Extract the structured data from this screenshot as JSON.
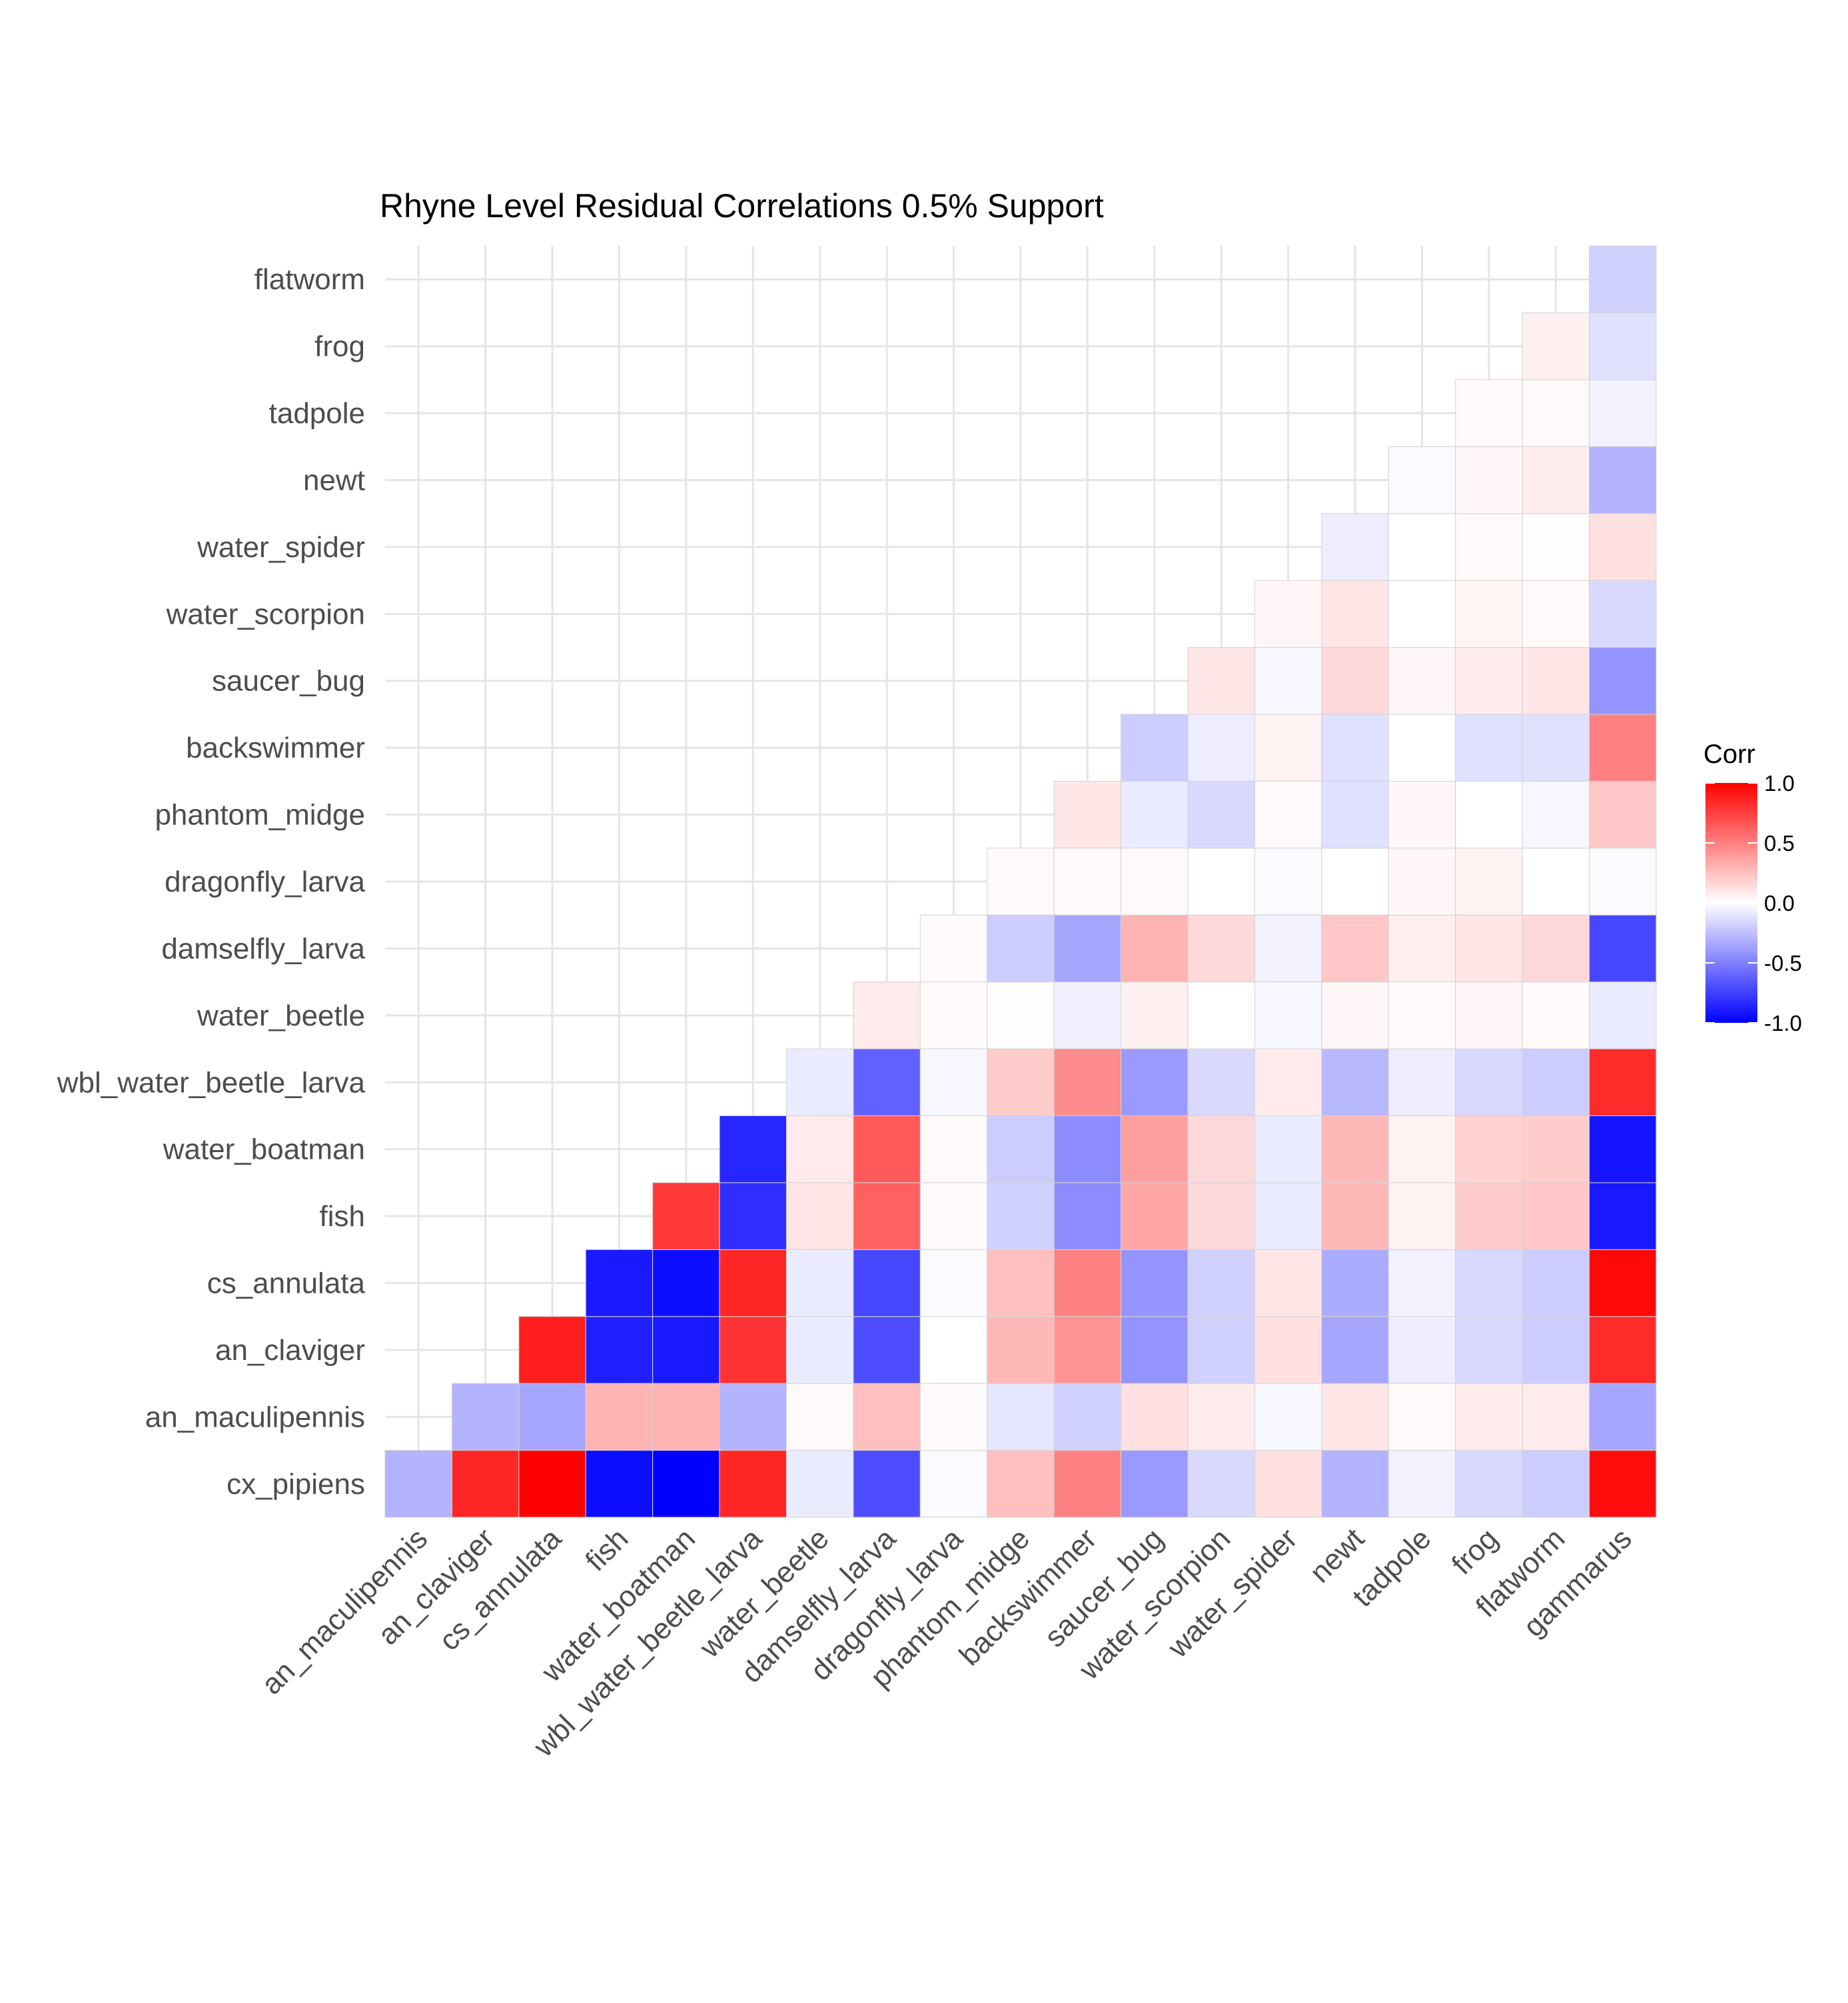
{
  "chart_data": {
    "type": "heatmap",
    "title": "Rhyne Level Residual Correlations 0.5% Support",
    "x_categories": [
      "an_maculipennis",
      "an_claviger",
      "cs_annulata",
      "fish",
      "water_boatman",
      "wbl_water_beetle_larva",
      "water_beetle",
      "damselfly_larva",
      "dragonfly_larva",
      "phantom_midge",
      "backswimmer",
      "saucer_bug",
      "water_scorpion",
      "water_spider",
      "newt",
      "tadpole",
      "frog",
      "flatworm",
      "gammarus"
    ],
    "y_categories": [
      "cx_pipiens",
      "an_maculipennis",
      "an_claviger",
      "cs_annulata",
      "fish",
      "water_boatman",
      "wbl_water_beetle_larva",
      "water_beetle",
      "damselfly_larva",
      "dragonfly_larva",
      "phantom_midge",
      "backswimmer",
      "saucer_bug",
      "water_scorpion",
      "water_spider",
      "newt",
      "tadpole",
      "frog",
      "flatworm"
    ],
    "values": [
      [
        -0.3,
        0.85,
        1.0,
        -0.95,
        -1.0,
        0.85,
        -0.08,
        -0.7,
        -0.02,
        0.25,
        0.5,
        -0.4,
        -0.15,
        0.12,
        -0.3,
        -0.05,
        -0.15,
        -0.2,
        0.95
      ],
      [
        null,
        -0.3,
        -0.35,
        0.3,
        0.3,
        -0.3,
        0.02,
        0.25,
        0.02,
        -0.1,
        -0.18,
        0.12,
        0.08,
        -0.03,
        0.1,
        0.02,
        0.08,
        0.08,
        -0.35
      ],
      [
        null,
        null,
        0.88,
        -0.88,
        -0.9,
        0.8,
        -0.08,
        -0.7,
        0.0,
        0.28,
        0.42,
        -0.42,
        -0.18,
        0.12,
        -0.35,
        -0.07,
        -0.15,
        -0.2,
        0.83
      ],
      [
        null,
        null,
        null,
        -0.9,
        -0.95,
        0.85,
        -0.08,
        -0.72,
        -0.02,
        0.25,
        0.5,
        -0.42,
        -0.18,
        0.1,
        -0.33,
        -0.05,
        -0.15,
        -0.2,
        0.97
      ],
      [
        null,
        null,
        null,
        null,
        0.78,
        -0.82,
        0.1,
        0.62,
        0.02,
        -0.18,
        -0.45,
        0.35,
        0.15,
        -0.08,
        0.28,
        0.05,
        0.2,
        0.22,
        -0.9
      ],
      [
        null,
        null,
        null,
        null,
        null,
        -0.85,
        0.08,
        0.65,
        0.02,
        -0.2,
        -0.45,
        0.38,
        0.15,
        -0.08,
        0.28,
        0.05,
        0.18,
        0.2,
        -0.92
      ],
      [
        null,
        null,
        null,
        null,
        null,
        null,
        -0.08,
        -0.62,
        -0.03,
        0.2,
        0.45,
        -0.4,
        -0.15,
        0.08,
        -0.28,
        -0.07,
        -0.15,
        -0.2,
        0.83
      ],
      [
        null,
        null,
        null,
        null,
        null,
        null,
        null,
        0.08,
        0.02,
        0.01,
        -0.06,
        0.06,
        0.0,
        -0.03,
        0.03,
        0.02,
        0.03,
        0.02,
        -0.08
      ],
      [
        null,
        null,
        null,
        null,
        null,
        null,
        null,
        null,
        0.02,
        -0.2,
        -0.35,
        0.3,
        0.15,
        -0.05,
        0.22,
        0.06,
        0.1,
        0.15,
        -0.72
      ],
      [
        null,
        null,
        null,
        null,
        null,
        null,
        null,
        null,
        null,
        0.02,
        0.02,
        0.02,
        0.0,
        -0.02,
        0.0,
        0.03,
        0.05,
        0.0,
        -0.02
      ],
      [
        null,
        null,
        null,
        null,
        null,
        null,
        null,
        null,
        null,
        null,
        0.1,
        -0.08,
        -0.15,
        0.02,
        -0.12,
        0.03,
        0.0,
        -0.03,
        0.22
      ],
      [
        null,
        null,
        null,
        null,
        null,
        null,
        null,
        null,
        null,
        null,
        null,
        -0.2,
        -0.07,
        0.05,
        -0.12,
        0.0,
        -0.12,
        -0.12,
        0.5
      ],
      [
        null,
        null,
        null,
        null,
        null,
        null,
        null,
        null,
        null,
        null,
        null,
        null,
        0.1,
        -0.03,
        0.15,
        0.03,
        0.08,
        0.1,
        -0.42
      ],
      [
        null,
        null,
        null,
        null,
        null,
        null,
        null,
        null,
        null,
        null,
        null,
        null,
        null,
        0.03,
        0.1,
        0.0,
        0.04,
        0.02,
        -0.15
      ],
      [
        null,
        null,
        null,
        null,
        null,
        null,
        null,
        null,
        null,
        null,
        null,
        null,
        null,
        null,
        -0.07,
        0.0,
        0.02,
        0.01,
        0.12
      ],
      [
        null,
        null,
        null,
        null,
        null,
        null,
        null,
        null,
        null,
        null,
        null,
        null,
        null,
        null,
        null,
        -0.02,
        0.03,
        0.07,
        -0.3
      ],
      [
        null,
        null,
        null,
        null,
        null,
        null,
        null,
        null,
        null,
        null,
        null,
        null,
        null,
        null,
        null,
        null,
        0.02,
        0.02,
        -0.05
      ],
      [
        null,
        null,
        null,
        null,
        null,
        null,
        null,
        null,
        null,
        null,
        null,
        null,
        null,
        null,
        null,
        null,
        null,
        0.06,
        -0.12
      ],
      [
        null,
        null,
        null,
        null,
        null,
        null,
        null,
        null,
        null,
        null,
        null,
        null,
        null,
        null,
        null,
        null,
        null,
        null,
        -0.18
      ]
    ],
    "value_range": [
      -1,
      1
    ],
    "grid": true,
    "legend": {
      "title": "Corr",
      "position": "right",
      "breaks": [
        1.0,
        0.5,
        0.0,
        -0.5,
        -1.0
      ],
      "labels": [
        "1.0",
        "0.5",
        "0.0",
        "-0.5",
        "-1.0"
      ]
    },
    "colors": {
      "low": "#0000ff",
      "mid": "#ffffff",
      "high": "#ff0000",
      "grid": "#e5e5e5",
      "cell_border": "#d3d3d3"
    }
  }
}
